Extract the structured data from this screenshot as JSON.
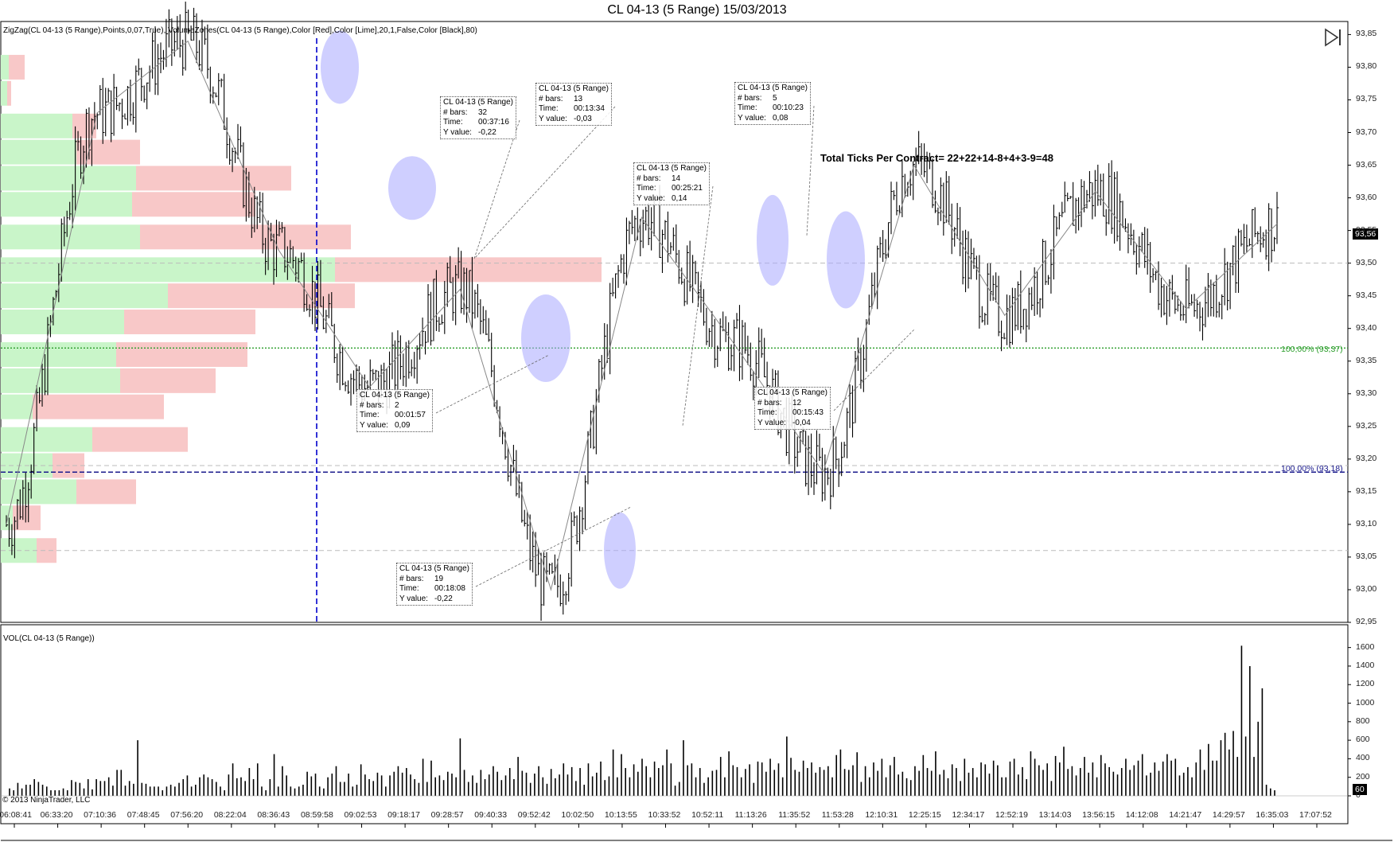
{
  "title": "CL 04-13 (5 Range)  15/03/2013",
  "indicator_label": "ZigZag(CL 04-13 (5 Range),Points,0,07,True), VolumeZones(CL 04-13 (5 Range),Color [Red],Color [Lime],20,1,False,Color [Black],80)",
  "vol_label": "VOL(CL 04-13 (5 Range))",
  "copyright": "© 2013 NinjaTrader, LLC",
  "annotation": "Total Ticks Per Contract= 22+22+14-8+4+3-9=48",
  "current_price": "93,56",
  "current_volume": "60",
  "colors": {
    "bar": "#000000",
    "buy_zone": "#c9f5c9",
    "sell_zone": "#f8c8c8",
    "highlight": "#a8a8ff",
    "fib_green": "#2a9d2a",
    "fib_blue": "#1a1a8c",
    "vline": "#0000cc"
  },
  "fib_levels": [
    {
      "label": "100,00% (93,37)",
      "price": 93.37,
      "color": "#2a9d2a"
    },
    {
      "label": "100,00% (93,18)",
      "price": 93.18,
      "color": "#1a1a8c"
    }
  ],
  "callouts": [
    {
      "name": "callout-1",
      "lines": [
        [
          "CL 04-13 (5 Range)",
          ""
        ],
        [
          "# bars:",
          "32"
        ],
        [
          "Time:",
          "00:37:16"
        ],
        [
          "Y value:",
          "-0,22"
        ]
      ]
    },
    {
      "name": "callout-2",
      "lines": [
        [
          "CL 04-13 (5 Range)",
          ""
        ],
        [
          "# bars:",
          "13"
        ],
        [
          "Time:",
          "00:13:34"
        ],
        [
          "Y value:",
          "-0,03"
        ]
      ]
    },
    {
      "name": "callout-3",
      "lines": [
        [
          "CL 04-13 (5 Range)",
          ""
        ],
        [
          "# bars:",
          "14"
        ],
        [
          "Time:",
          "00:25:21"
        ],
        [
          "Y value:",
          "0,14"
        ]
      ]
    },
    {
      "name": "callout-4",
      "lines": [
        [
          "CL 04-13 (5 Range)",
          ""
        ],
        [
          "# bars:",
          "5"
        ],
        [
          "Time:",
          "00:10:23"
        ],
        [
          "Y value:",
          "0,08"
        ]
      ]
    },
    {
      "name": "callout-5",
      "lines": [
        [
          "CL 04-13 (5 Range)",
          ""
        ],
        [
          "# bars:",
          "2"
        ],
        [
          "Time:",
          "00:01:57"
        ],
        [
          "Y value:",
          "0,09"
        ]
      ]
    },
    {
      "name": "callout-6",
      "lines": [
        [
          "CL 04-13 (5 Range)",
          ""
        ],
        [
          "# bars:",
          "12"
        ],
        [
          "Time:",
          "00:15:43"
        ],
        [
          "Y value:",
          "-0,04"
        ]
      ]
    },
    {
      "name": "callout-7",
      "lines": [
        [
          "CL 04-13 (5 Range)",
          ""
        ],
        [
          "# bars:",
          "19"
        ],
        [
          "Time:",
          "00:18:08"
        ],
        [
          "Y value:",
          "-0,22"
        ]
      ]
    }
  ],
  "chart_data": [
    {
      "type": "ohlc",
      "name": "price",
      "ylim": [
        92.95,
        93.87
      ],
      "price_ticks": [
        "93,85",
        "93,80",
        "93,75",
        "93,70",
        "93,65",
        "93,60",
        "93,55",
        "93,50",
        "93,45",
        "93,40",
        "93,35",
        "93,30",
        "93,25",
        "93,20",
        "93,15",
        "93,10",
        "93,05",
        "93,00",
        "92,95"
      ],
      "time_ticks": [
        "06:08:41",
        "06:33:20",
        "07:10:36",
        "07:48:45",
        "07:56:20",
        "08:22:04",
        "08:36:43",
        "08:59:58",
        "09:02:53",
        "09:18:17",
        "09:28:57",
        "09:40:33",
        "09:52:42",
        "10:02:50",
        "10:13:55",
        "10:33:52",
        "10:52:11",
        "11:13:26",
        "11:35:52",
        "11:53:28",
        "12:10:31",
        "12:25:15",
        "12:34:17",
        "12:52:19",
        "13:14:03",
        "13:56:15",
        "14:12:08",
        "14:21:47",
        "14:29:57",
        "16:35:03",
        "17:07:52"
      ],
      "zigzag_path": [
        93.1,
        93.73,
        93.84,
        93.52,
        93.31,
        93.46,
        93.0,
        93.57,
        93.38,
        93.18,
        93.65,
        93.42,
        93.61,
        93.43,
        93.56
      ],
      "volume_zones": [
        {
          "price": 93.8,
          "buy": 10,
          "sell": 20
        },
        {
          "price": 93.76,
          "buy": 8,
          "sell": 5
        },
        {
          "price": 93.71,
          "buy": 90,
          "sell": 30
        },
        {
          "price": 93.67,
          "buy": 95,
          "sell": 80
        },
        {
          "price": 93.63,
          "buy": 170,
          "sell": 195
        },
        {
          "price": 93.59,
          "buy": 165,
          "sell": 155
        },
        {
          "price": 93.54,
          "buy": 175,
          "sell": 265
        },
        {
          "price": 93.49,
          "buy": 420,
          "sell": 335
        },
        {
          "price": 93.45,
          "buy": 210,
          "sell": 235
        },
        {
          "price": 93.41,
          "buy": 155,
          "sell": 165
        },
        {
          "price": 93.36,
          "buy": 145,
          "sell": 165
        },
        {
          "price": 93.32,
          "buy": 150,
          "sell": 120
        },
        {
          "price": 93.28,
          "buy": 40,
          "sell": 165
        },
        {
          "price": 93.23,
          "buy": 115,
          "sell": 120
        },
        {
          "price": 93.19,
          "buy": 65,
          "sell": 40
        },
        {
          "price": 93.15,
          "buy": 95,
          "sell": 75
        },
        {
          "price": 93.11,
          "buy": 15,
          "sell": 35
        },
        {
          "price": 93.06,
          "buy": 45,
          "sell": 25
        }
      ]
    },
    {
      "type": "bar",
      "name": "volume",
      "ylim": [
        0,
        1700
      ],
      "ticks": [
        "1600",
        "1400",
        "1200",
        "1000",
        "800",
        "600",
        "400",
        "200",
        "0"
      ],
      "values": [
        80,
        60,
        140,
        80,
        120,
        120,
        180,
        150,
        120,
        100,
        60,
        60,
        60,
        80,
        60,
        170,
        150,
        140,
        80,
        180,
        70,
        180,
        160,
        160,
        200,
        110,
        280,
        280,
        110,
        160,
        130,
        600,
        140,
        130,
        100,
        100,
        100,
        60,
        100,
        120,
        100,
        140,
        180,
        220,
        100,
        120,
        200,
        230,
        200,
        180,
        150,
        100,
        60,
        230,
        350,
        190,
        200,
        160,
        300,
        180,
        350,
        100,
        60,
        180,
        450,
        100,
        320,
        220,
        100,
        80,
        100,
        120,
        260,
        210,
        240,
        100,
        80,
        200,
        240,
        320,
        150,
        150,
        240,
        100,
        120,
        340,
        230,
        180,
        160,
        250,
        220,
        100,
        220,
        260,
        320,
        250,
        300,
        230,
        180,
        140,
        400,
        150,
        380,
        200,
        220,
        170,
        260,
        240,
        200,
        620,
        280,
        150,
        220,
        140,
        280,
        180,
        230,
        320,
        260,
        170,
        220,
        300,
        180,
        420,
        270,
        250,
        140,
        240,
        320,
        200,
        130,
        290,
        190,
        230,
        350,
        230,
        310,
        160,
        300,
        120,
        350,
        210,
        250,
        370,
        170,
        210,
        500,
        200,
        450,
        300,
        200,
        340,
        260,
        400,
        320,
        200,
        370,
        300,
        330,
        500,
        350,
        110,
        150,
        600,
        330,
        350,
        200,
        300,
        140,
        200,
        270,
        280,
        420,
        200,
        480,
        330,
        310,
        200,
        290,
        340,
        140,
        370,
        360,
        260,
        400,
        280,
        350,
        200,
        640,
        410,
        280,
        260,
        380,
        300,
        360,
        250,
        310,
        280,
        320,
        200,
        440,
        500,
        290,
        280,
        330,
        470,
        150,
        320,
        200,
        360,
        270,
        400,
        200,
        330,
        420,
        230,
        260,
        190,
        170,
        320,
        270,
        440,
        300,
        270,
        480,
        230,
        280,
        190,
        340,
        300,
        160,
        400,
        250,
        300,
        200,
        360,
        340,
        240,
        380,
        330,
        200,
        200,
        370,
        400,
        230,
        310,
        180,
        480,
        400,
        330,
        280,
        350,
        160,
        430,
        360,
        530,
        290,
        320,
        220,
        300,
        420,
        250,
        360,
        200,
        440,
        350,
        310,
        260,
        230,
        300,
        400,
        280,
        330,
        380,
        450,
        220,
        250,
        360,
        270,
        370,
        450,
        380,
        400,
        220,
        250,
        310,
        200,
        360,
        500,
        280,
        560,
        380,
        380,
        600,
        680,
        500,
        700,
        420,
        1620,
        640,
        1400,
        420,
        800,
        1160,
        120,
        80,
        60
      ]
    }
  ]
}
